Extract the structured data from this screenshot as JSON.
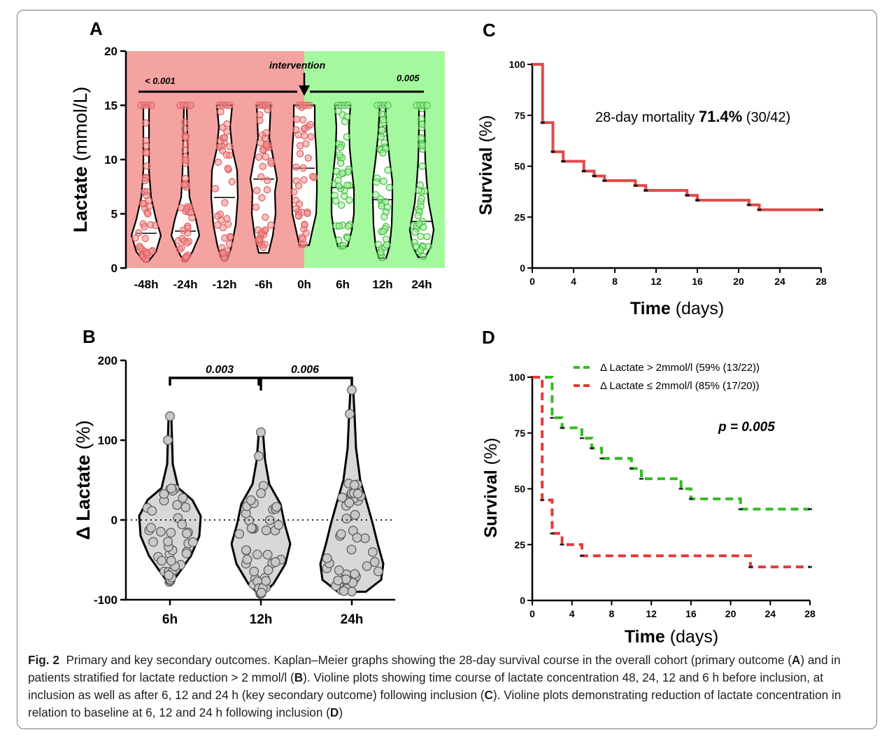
{
  "figure_caption": {
    "label": "Fig. 2",
    "pieces": [
      {
        "t": "Primary and key secondary outcomes. Kaplan–Meier graphs showing the 28-day survival course in the overall cohort (primary outcome (",
        "b": false
      },
      {
        "t": "A",
        "b": true
      },
      {
        "t": ") and in patients stratified for lactate reduction > 2 mmol/l (",
        "b": false
      },
      {
        "t": "B",
        "b": true
      },
      {
        "t": "). Violine plots showing time course of lactate concentration 48, 24, 12 and 6 h before inclusion, at inclusion as well as after 6, 12 and 24 h (key secondary outcome) following inclusion (",
        "b": false
      },
      {
        "t": "C",
        "b": true
      },
      {
        "t": "). Violine plots demonstrating reduction of lactate concentration in relation to baseline at 6, 12 and 24 h following inclusion (",
        "b": false
      },
      {
        "t": "D",
        "b": true
      },
      {
        "t": ")",
        "b": false
      }
    ]
  },
  "colors": {
    "pre_bg": "#f4a3a1",
    "post_bg": "#a4f99e",
    "red_point": "#e06060",
    "green_point": "#3fbf3f",
    "km_red": "#e04a4a",
    "km_green": "#33bb22",
    "km_dred": "#e23a3a",
    "gray_fill": "#d8d8d8",
    "gray_point": "#c8c8c8"
  },
  "chart_data": [
    {
      "panel": "A",
      "type": "violin",
      "ylabel_bold": "Lactate",
      "ylabel_rest": "(mmol/L)",
      "ylim": [
        0,
        20
      ],
      "yticks": [
        "0",
        "5",
        "10",
        "15",
        "20"
      ],
      "categories": [
        "-48h",
        "-24h",
        "-12h",
        "-6h",
        "0h",
        "6h",
        "12h",
        "24h"
      ],
      "phase": [
        "pre",
        "pre",
        "pre",
        "pre",
        "pre",
        "post",
        "post",
        "post"
      ],
      "medians": [
        3.2,
        3.4,
        6.5,
        8.2,
        9.2,
        7.4,
        6.3,
        4.3
      ],
      "annotations": {
        "intervention": "intervention",
        "pre_p": "< 0.001",
        "post_p": "0.005"
      }
    },
    {
      "panel": "B",
      "type": "violin",
      "ylabel_bold": "Δ Lactate",
      "ylabel_rest": "(%)",
      "ylim": [
        -100,
        200
      ],
      "yticks": [
        "-100",
        "0",
        "100",
        "200"
      ],
      "categories": [
        "6h",
        "12h",
        "24h"
      ],
      "max_values": [
        130,
        110,
        163
      ],
      "min_values": [
        -78,
        -93,
        -90
      ],
      "annotations": {
        "p1": "0.003",
        "p2": "0.006"
      }
    },
    {
      "panel": "C",
      "type": "line",
      "xlabel_bold": "Time",
      "xlabel_rest": "(days)",
      "ylabel": "Survival (%)",
      "xlim": [
        0,
        28
      ],
      "ylim": [
        0,
        100
      ],
      "xticks": [
        "0",
        "4",
        "8",
        "12",
        "16",
        "20",
        "24",
        "28"
      ],
      "yticks": [
        "0",
        "25",
        "50",
        "75",
        "100"
      ],
      "annotation": {
        "pre": "28-day mortality ",
        "bold": "71.4%",
        "post": " (30/42)"
      },
      "series": [
        {
          "x": [
            0,
            1,
            2,
            3,
            5,
            6,
            7,
            10,
            11,
            15,
            16,
            21,
            22,
            28
          ],
          "y": [
            100,
            71.4,
            57.1,
            52.4,
            47.6,
            45.2,
            42.9,
            40.5,
            38.1,
            35.7,
            33.3,
            31.0,
            28.6,
            28.6
          ]
        }
      ]
    },
    {
      "panel": "D",
      "type": "line",
      "xlabel_bold": "Time",
      "xlabel_rest": "(days)",
      "ylabel": "Survival (%)",
      "xlim": [
        0,
        28
      ],
      "ylim": [
        0,
        100
      ],
      "xticks": [
        "0",
        "4",
        "8",
        "12",
        "16",
        "20",
        "24",
        "28"
      ],
      "yticks": [
        "0",
        "25",
        "50",
        "75",
        "100"
      ],
      "p_value": "p = 0.005",
      "series": [
        {
          "name": "Δ Lactate > 2mmol/l (59% (13/22))",
          "color": "green",
          "x": [
            0,
            2,
            3,
            5,
            6,
            7,
            10,
            11,
            15,
            16,
            21,
            28
          ],
          "y": [
            100,
            81.8,
            77.3,
            72.7,
            68.2,
            63.6,
            59.1,
            54.5,
            50.0,
            45.5,
            40.9,
            40.9
          ]
        },
        {
          "name": "Δ Lactate ≤ 2mmol/l (85% (17/20))",
          "color": "red",
          "x": [
            0,
            1,
            2,
            3,
            5,
            22,
            28
          ],
          "y": [
            100,
            45,
            30,
            25,
            20,
            15,
            15
          ]
        }
      ]
    }
  ]
}
